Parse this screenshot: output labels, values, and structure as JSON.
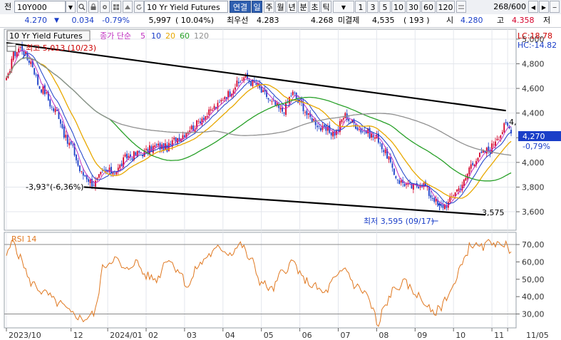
{
  "toolbar": {
    "symbol_tag": "전",
    "symbol_code": "10Y000",
    "dropdown_icon": "chevron-down-icon",
    "instrument_name": "10 Yr Yield Futures",
    "btn_connected": "연결",
    "btn_day": "일",
    "btn_week": "주",
    "btn_month": "월",
    "btn_year": "년",
    "btn_minute": "분",
    "btn_second": "초",
    "btn_tick": "틱",
    "period_buttons": [
      "1",
      "3",
      "5",
      "10",
      "30",
      "60",
      "120"
    ],
    "count": "268/600"
  },
  "quote": {
    "price": "4.270",
    "change": "0.034",
    "change_pct": "-0.79%",
    "volume": "5,997",
    "volume_pct": "( 10.04%)",
    "best_ask_label": "최우선",
    "best_ask": "4.283",
    "best_bid": "4.268",
    "open_interest_label": "미결제",
    "open_interest": "4,535",
    "oi_change": "( 193 )",
    "open_label": "시",
    "open": "4.280",
    "high_label": "고",
    "high": "4.358",
    "low_label": "저"
  },
  "legend": {
    "name": "10 Yr Yield Futures",
    "ma_label": "종가 단순",
    "ma_periods": [
      "5",
      "10",
      "20",
      "60",
      "120"
    ],
    "ma_colors": [
      "#c030c0",
      "#1a3ec8",
      "#e8a800",
      "#28a028",
      "#909090"
    ]
  },
  "annotations": {
    "lc": "LC:18.78",
    "hc": "HC:-14.82",
    "high_marker": "최고 5,013 (10/23)",
    "low_marker": "최저 3,595 (09/17)",
    "left_low": "-3,93°(-6,36%)",
    "channel_end": "3,575",
    "upper_end": "4,",
    "price_tag": "4,270",
    "price_tag_pct": "-0,79%"
  },
  "colors": {
    "up": "#d4002a",
    "down": "#1a3ec8",
    "rsi": "#e07820",
    "trendline": "#000000",
    "price_tag_bg": "#1a3ec8"
  },
  "chart_data": [
    {
      "type": "candlestick",
      "series": [
        {
          "name": "5",
          "color": "#c030c0"
        },
        {
          "name": "10",
          "color": "#1a3ec8"
        },
        {
          "name": "20",
          "color": "#e8a800"
        },
        {
          "name": "60",
          "color": "#28a028"
        },
        {
          "name": "120",
          "color": "#909090"
        }
      ],
      "ylim": [
        3.45,
        5.08
      ],
      "yticks": [
        "5,000",
        "4,800",
        "4,600",
        "4,400",
        "4,200",
        "4,000",
        "3,800",
        "3,600"
      ],
      "anchors": [
        [
          0,
          4.66
        ],
        [
          4,
          4.88
        ],
        [
          8,
          4.93
        ],
        [
          13,
          4.83
        ],
        [
          20,
          4.6
        ],
        [
          28,
          4.42
        ],
        [
          36,
          4.15
        ],
        [
          44,
          3.9
        ],
        [
          50,
          3.83
        ],
        [
          56,
          3.92
        ],
        [
          62,
          3.93
        ],
        [
          70,
          4.05
        ],
        [
          78,
          4.08
        ],
        [
          86,
          4.13
        ],
        [
          92,
          4.12
        ],
        [
          98,
          4.2
        ],
        [
          106,
          4.28
        ],
        [
          114,
          4.38
        ],
        [
          120,
          4.45
        ],
        [
          126,
          4.55
        ],
        [
          132,
          4.63
        ],
        [
          136,
          4.69
        ],
        [
          142,
          4.64
        ],
        [
          148,
          4.55
        ],
        [
          152,
          4.48
        ],
        [
          158,
          4.42
        ],
        [
          164,
          4.56
        ],
        [
          168,
          4.48
        ],
        [
          174,
          4.36
        ],
        [
          182,
          4.26
        ],
        [
          188,
          4.24
        ],
        [
          194,
          4.38
        ],
        [
          198,
          4.32
        ],
        [
          204,
          4.26
        ],
        [
          212,
          4.2
        ],
        [
          218,
          4.06
        ],
        [
          222,
          3.9
        ],
        [
          226,
          3.84
        ],
        [
          232,
          3.8
        ],
        [
          238,
          3.83
        ],
        [
          244,
          3.72
        ],
        [
          248,
          3.64
        ],
        [
          252,
          3.66
        ],
        [
          258,
          3.78
        ],
        [
          262,
          3.84
        ],
        [
          266,
          3.98
        ],
        [
          270,
          4.05
        ],
        [
          276,
          4.1
        ],
        [
          282,
          4.22
        ],
        [
          286,
          4.3
        ],
        [
          289,
          4.27
        ]
      ],
      "upper_trendline": [
        [
          0,
          4.97
        ],
        [
          286,
          4.42
        ]
      ],
      "lower_trendline": [
        [
          46,
          3.8
        ],
        [
          262,
          3.575
        ]
      ],
      "x_tick_labels": [
        {
          "i": 0,
          "label": "2023/10"
        },
        {
          "i": 37,
          "label": "12"
        },
        {
          "i": 58,
          "label": "2024/01"
        },
        {
          "i": 80,
          "label": "02"
        },
        {
          "i": 102,
          "label": "03"
        },
        {
          "i": 124,
          "label": "04"
        },
        {
          "i": 146,
          "label": "05"
        },
        {
          "i": 168,
          "label": "06"
        },
        {
          "i": 190,
          "label": "07"
        },
        {
          "i": 212,
          "label": "08"
        },
        {
          "i": 234,
          "label": "09"
        },
        {
          "i": 256,
          "label": "10"
        },
        {
          "i": 278,
          "label": "11"
        },
        {
          "i": 287,
          "label": "11/05"
        }
      ]
    },
    {
      "type": "line",
      "title": "RSI 14",
      "ylim": [
        22,
        77
      ],
      "yticks": [
        "70,00",
        "60,00",
        "50,00",
        "40,00",
        "30,00"
      ],
      "levels": [
        70,
        30
      ],
      "anchors": [
        [
          0,
          64
        ],
        [
          4,
          72
        ],
        [
          8,
          62
        ],
        [
          14,
          48
        ],
        [
          22,
          42
        ],
        [
          30,
          36
        ],
        [
          38,
          30
        ],
        [
          44,
          27
        ],
        [
          50,
          30
        ],
        [
          56,
          58
        ],
        [
          62,
          62
        ],
        [
          68,
          55
        ],
        [
          74,
          60
        ],
        [
          80,
          52
        ],
        [
          86,
          50
        ],
        [
          92,
          62
        ],
        [
          98,
          56
        ],
        [
          104,
          46
        ],
        [
          110,
          58
        ],
        [
          116,
          64
        ],
        [
          122,
          68
        ],
        [
          128,
          65
        ],
        [
          134,
          70
        ],
        [
          140,
          61
        ],
        [
          146,
          48
        ],
        [
          152,
          44
        ],
        [
          158,
          54
        ],
        [
          164,
          60
        ],
        [
          170,
          50
        ],
        [
          176,
          46
        ],
        [
          182,
          42
        ],
        [
          188,
          50
        ],
        [
          194,
          56
        ],
        [
          200,
          46
        ],
        [
          206,
          42
        ],
        [
          210,
          32
        ],
        [
          213,
          22
        ],
        [
          216,
          34
        ],
        [
          222,
          44
        ],
        [
          228,
          48
        ],
        [
          234,
          42
        ],
        [
          240,
          36
        ],
        [
          244,
          30
        ],
        [
          248,
          33
        ],
        [
          252,
          40
        ],
        [
          256,
          46
        ],
        [
          262,
          62
        ],
        [
          266,
          70
        ],
        [
          272,
          68
        ],
        [
          278,
          72
        ],
        [
          284,
          68
        ],
        [
          286,
          73
        ],
        [
          289,
          64
        ]
      ]
    }
  ]
}
